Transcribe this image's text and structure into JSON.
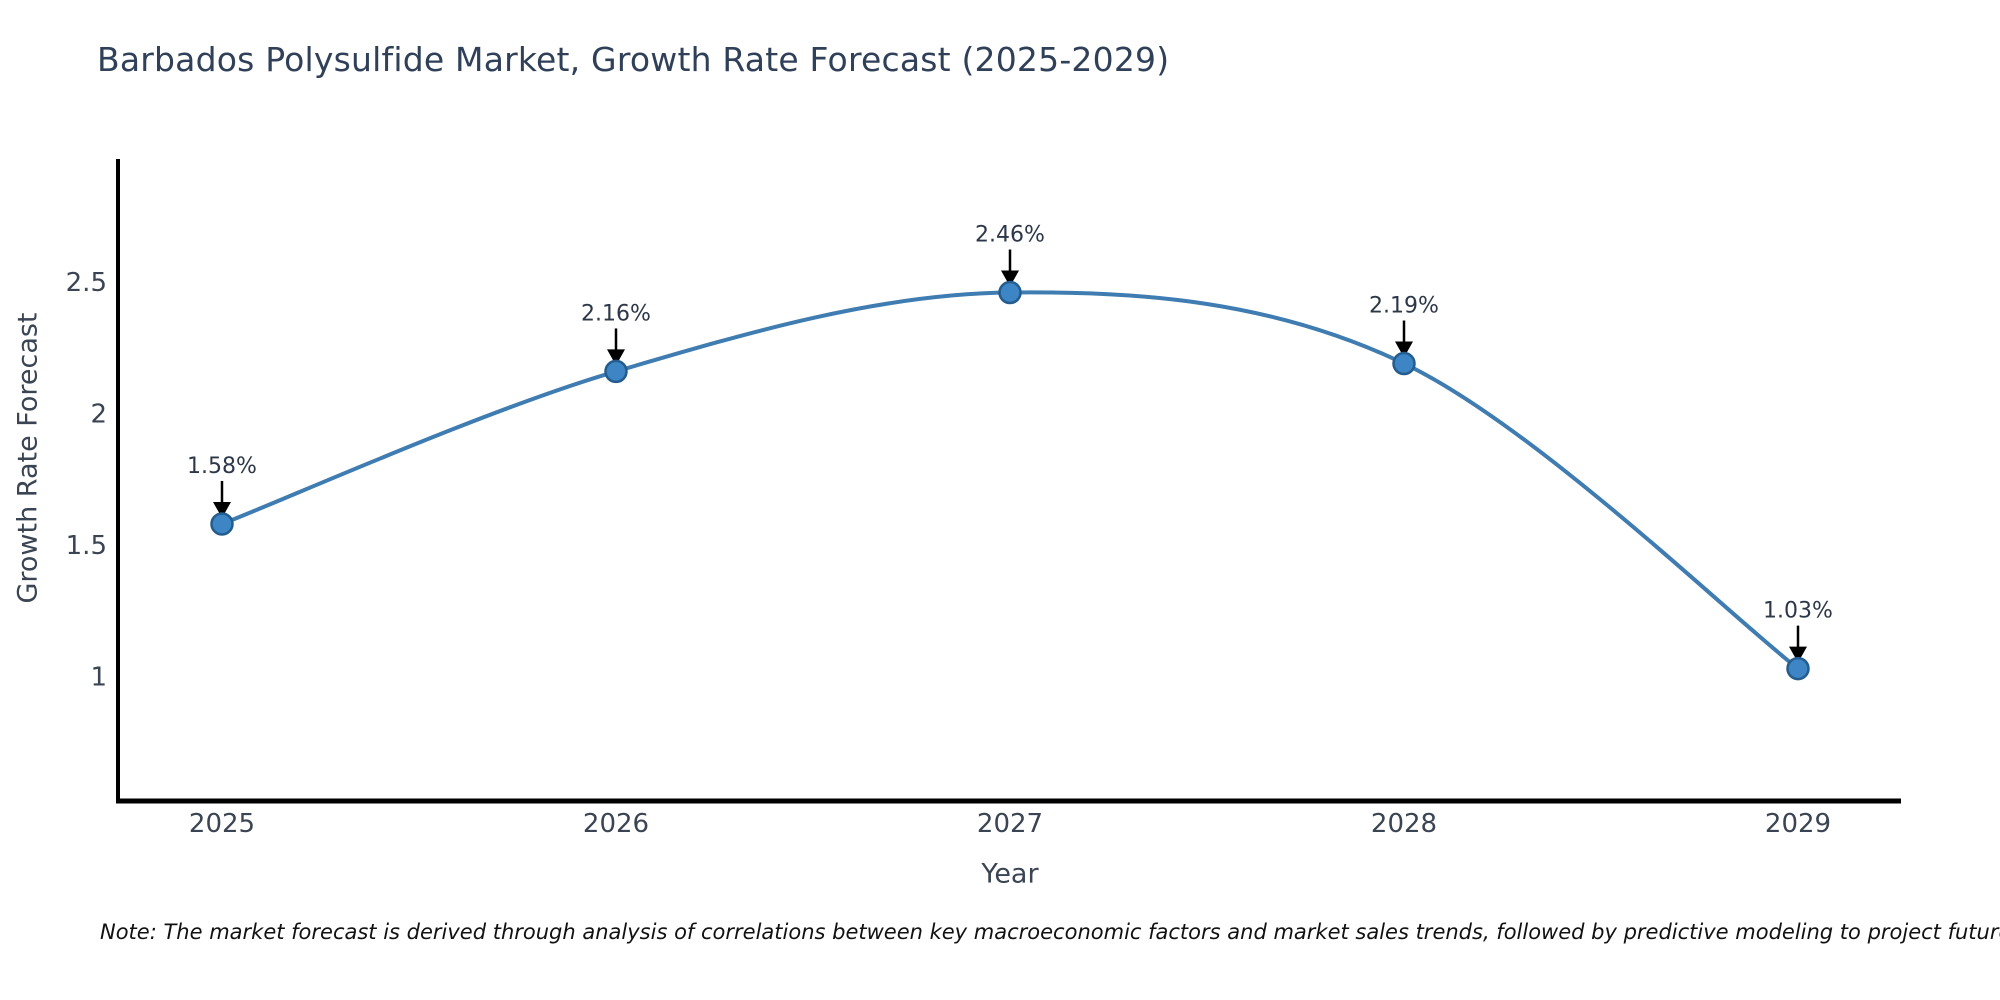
{
  "chart": {
    "title": "Barbados Polysulfide Market, Growth Rate Forecast (2025-2029)",
    "xlabel": "Year",
    "ylabel": "Growth Rate Forecast",
    "note": "Note: The market forecast is derived through analysis of correlations between key macroeconomic factors and market sales trends, followed by predictive modeling to project future sales"
  },
  "chart_data": {
    "type": "line",
    "title": "Barbados Polysulfide Market, Growth Rate Forecast (2025-2029)",
    "xlabel": "Year",
    "ylabel": "Growth Rate Forecast",
    "categories": [
      "2025",
      "2026",
      "2027",
      "2028",
      "2029"
    ],
    "series": [
      {
        "name": "Growth Rate Forecast (%)",
        "values": [
          1.58,
          2.16,
          2.46,
          2.19,
          1.03
        ]
      }
    ],
    "point_labels": [
      "1.58%",
      "2.16%",
      "2.46%",
      "2.19%",
      "1.03%"
    ],
    "yticks": [
      "1",
      "1.5",
      "2",
      "2.5"
    ],
    "ytick_values": [
      1,
      1.5,
      2,
      2.5
    ],
    "ylim": [
      0.53,
      2.97
    ],
    "grid": false,
    "legend": false,
    "annotations": "black arrow from each value label pointing down to marker",
    "colors": {
      "line": "#3f7cb1",
      "marker_fill": "#3d85c5",
      "marker_edge": "#245d8d",
      "axis": "#000000",
      "tick_text": "#3a4453",
      "annotation_text": "#2c3747",
      "title_text": "#2f4058"
    }
  }
}
